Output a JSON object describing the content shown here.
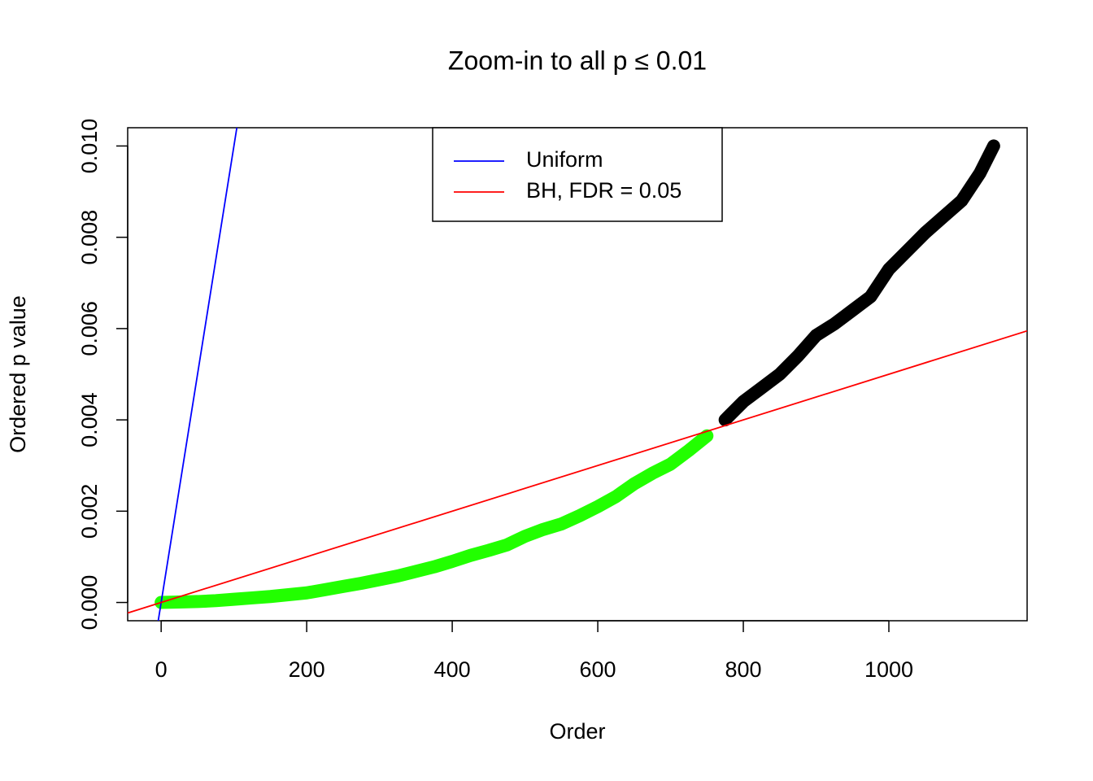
{
  "chart_data": {
    "type": "scatter",
    "title": "Zoom-in to all p ≤ 0.01",
    "x_label": "Order",
    "y_label": "Ordered p value",
    "xlim": [
      -46,
      1190
    ],
    "ylim": [
      -0.0004,
      0.0104
    ],
    "xticks": [
      0,
      200,
      400,
      600,
      800,
      1000
    ],
    "yticks": [
      {
        "value": 0,
        "label": "0.000"
      },
      {
        "value": 0.002,
        "label": "0.002"
      },
      {
        "value": 0.004,
        "label": "0.004"
      },
      {
        "value": 0.006,
        "label": "0.006"
      },
      {
        "value": 0.008,
        "label": "0.008"
      },
      {
        "value": 0.01,
        "label": "0.010"
      }
    ],
    "series": [
      {
        "color": "#22ff00",
        "x": [
          0,
          25,
          50,
          75,
          100,
          125,
          150,
          175,
          200,
          225,
          250,
          275,
          300,
          325,
          350,
          375,
          400,
          425,
          450,
          475,
          500,
          525,
          550,
          575,
          600,
          625,
          650,
          675,
          700,
          725,
          750
        ],
        "values": [
          0,
          1e-05,
          2e-05,
          4e-05,
          7e-05,
          0.0001,
          0.00013,
          0.00017,
          0.00021,
          0.00028,
          0.00035,
          0.00042,
          0.0005,
          0.00058,
          0.00068,
          0.00078,
          0.0009,
          0.00103,
          0.00114,
          0.00126,
          0.00145,
          0.0016,
          0.00172,
          0.0019,
          0.0021,
          0.00232,
          0.0026,
          0.00283,
          0.00303,
          0.00333,
          0.00365
        ]
      },
      {
        "color": "#000000",
        "x": [
          775,
          800,
          825,
          850,
          875,
          900,
          925,
          950,
          975,
          1000,
          1025,
          1050,
          1075,
          1100,
          1125,
          1144
        ],
        "values": [
          0.004,
          0.0044,
          0.0047,
          0.005,
          0.0054,
          0.00585,
          0.0061,
          0.0064,
          0.0067,
          0.0073,
          0.0077,
          0.0081,
          0.00845,
          0.0088,
          0.0094,
          0.01
        ]
      }
    ],
    "lines": [
      {
        "name": "Uniform",
        "color": "#0000ff",
        "slope": 0.0001,
        "intercept": 0
      },
      {
        "name": "BH, FDR = 0.05",
        "color": "#ff0000",
        "slope": 5e-06,
        "intercept": 0
      }
    ]
  }
}
